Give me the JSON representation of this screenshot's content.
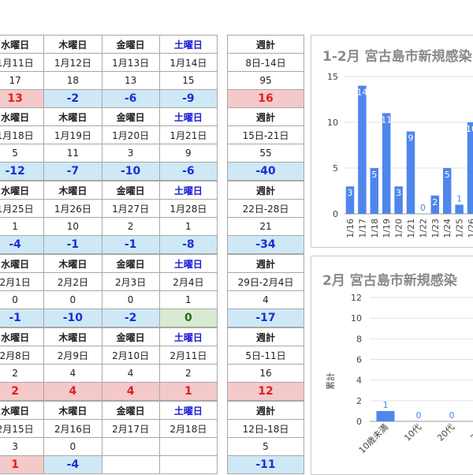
{
  "weeks": [
    {
      "days": [
        {
          "weekday": "水曜日",
          "date": "1月11日",
          "count": "17",
          "diff": "13",
          "diff_kind": "pos",
          "sat": false
        },
        {
          "weekday": "木曜日",
          "date": "1月12日",
          "count": "18",
          "diff": "-2",
          "diff_kind": "neg",
          "sat": false
        },
        {
          "weekday": "金曜日",
          "date": "1月13日",
          "count": "13",
          "diff": "-6",
          "diff_kind": "neg",
          "sat": false
        },
        {
          "weekday": "土曜日",
          "date": "1月14日",
          "count": "15",
          "diff": "-9",
          "diff_kind": "neg",
          "sat": true
        }
      ],
      "summary": {
        "label": "週計",
        "range": "8日-14日",
        "total": "95",
        "diff": "16",
        "diff_kind": "pos"
      }
    },
    {
      "days": [
        {
          "weekday": "水曜日",
          "date": "1月18日",
          "count": "5",
          "diff": "-12",
          "diff_kind": "neg",
          "sat": false
        },
        {
          "weekday": "木曜日",
          "date": "1月19日",
          "count": "11",
          "diff": "-7",
          "diff_kind": "neg",
          "sat": false
        },
        {
          "weekday": "金曜日",
          "date": "1月20日",
          "count": "3",
          "diff": "-10",
          "diff_kind": "neg",
          "sat": false
        },
        {
          "weekday": "土曜日",
          "date": "1月21日",
          "count": "9",
          "diff": "-6",
          "diff_kind": "neg",
          "sat": true
        }
      ],
      "summary": {
        "label": "週計",
        "range": "15日-21日",
        "total": "55",
        "diff": "-40",
        "diff_kind": "neg"
      }
    },
    {
      "days": [
        {
          "weekday": "水曜日",
          "date": "1月25日",
          "count": "1",
          "diff": "-4",
          "diff_kind": "neg",
          "sat": false
        },
        {
          "weekday": "木曜日",
          "date": "1月26日",
          "count": "10",
          "diff": "-1",
          "diff_kind": "neg",
          "sat": false
        },
        {
          "weekday": "金曜日",
          "date": "1月27日",
          "count": "2",
          "diff": "-1",
          "diff_kind": "neg",
          "sat": false
        },
        {
          "weekday": "土曜日",
          "date": "1月28日",
          "count": "1",
          "diff": "-8",
          "diff_kind": "neg",
          "sat": true
        }
      ],
      "summary": {
        "label": "週計",
        "range": "22日-28日",
        "total": "21",
        "diff": "-34",
        "diff_kind": "neg"
      }
    },
    {
      "days": [
        {
          "weekday": "水曜日",
          "date": "2月1日",
          "count": "0",
          "diff": "-1",
          "diff_kind": "neg",
          "sat": false
        },
        {
          "weekday": "木曜日",
          "date": "2月2日",
          "count": "0",
          "diff": "-10",
          "diff_kind": "neg",
          "sat": false
        },
        {
          "weekday": "金曜日",
          "date": "2月3日",
          "count": "0",
          "diff": "-2",
          "diff_kind": "neg",
          "sat": false
        },
        {
          "weekday": "土曜日",
          "date": "2月4日",
          "count": "1",
          "diff": "0",
          "diff_kind": "zero",
          "sat": true
        }
      ],
      "summary": {
        "label": "週計",
        "range": "29日-2月4日",
        "total": "4",
        "diff": "-17",
        "diff_kind": "neg"
      }
    },
    {
      "days": [
        {
          "weekday": "水曜日",
          "date": "2月8日",
          "count": "2",
          "diff": "2",
          "diff_kind": "pos",
          "sat": false
        },
        {
          "weekday": "木曜日",
          "date": "2月9日",
          "count": "4",
          "diff": "4",
          "diff_kind": "pos",
          "sat": false
        },
        {
          "weekday": "金曜日",
          "date": "2月10日",
          "count": "4",
          "diff": "4",
          "diff_kind": "pos",
          "sat": false
        },
        {
          "weekday": "土曜日",
          "date": "2月11日",
          "count": "2",
          "diff": "1",
          "diff_kind": "pos",
          "sat": true
        }
      ],
      "summary": {
        "label": "週計",
        "range": "5日-11日",
        "total": "16",
        "diff": "12",
        "diff_kind": "pos"
      }
    },
    {
      "days": [
        {
          "weekday": "水曜日",
          "date": "2月15日",
          "count": "3",
          "diff": "1",
          "diff_kind": "pos",
          "sat": false
        },
        {
          "weekday": "木曜日",
          "date": "2月16日",
          "count": "0",
          "diff": "-4",
          "diff_kind": "neg",
          "sat": false
        },
        {
          "weekday": "金曜日",
          "date": "2月17日",
          "count": "",
          "diff": "",
          "diff_kind": "blank",
          "sat": false
        },
        {
          "weekday": "土曜日",
          "date": "2月18日",
          "count": "",
          "diff": "",
          "diff_kind": "blank",
          "sat": true
        }
      ],
      "summary": {
        "label": "週計",
        "range": "12日-18日",
        "total": "5",
        "diff": "-11",
        "diff_kind": "neg"
      }
    }
  ],
  "colors": {
    "bar": "#4f86ec",
    "positive": "#e02020",
    "negative": "#1a2fd6",
    "zero": "#1d6f1d",
    "saturday": "#1a1ad6"
  },
  "chart_data": [
    {
      "type": "bar",
      "title": "1-2月 宮古島市新規感染",
      "categories": [
        "1/16",
        "1/17",
        "1/18",
        "1/19",
        "1/20",
        "1/21",
        "1/22",
        "1/23",
        "1/24",
        "1/25",
        "1/26"
      ],
      "values": [
        3,
        14,
        5,
        11,
        3,
        9,
        0,
        2,
        5,
        1,
        10
      ],
      "ylim": [
        0,
        15
      ],
      "yticks": [
        0,
        5,
        10,
        15
      ],
      "grid": true
    },
    {
      "type": "bar",
      "title": "2月 宮古島市新規感染",
      "categories": [
        "10歳未満",
        "10代",
        "20代",
        "30代"
      ],
      "values": [
        1,
        0,
        0,
        2
      ],
      "ylabel": "累計",
      "ylim": [
        0,
        12
      ],
      "yticks": [
        0,
        2,
        4,
        6,
        8,
        10,
        12
      ],
      "grid": true
    }
  ]
}
